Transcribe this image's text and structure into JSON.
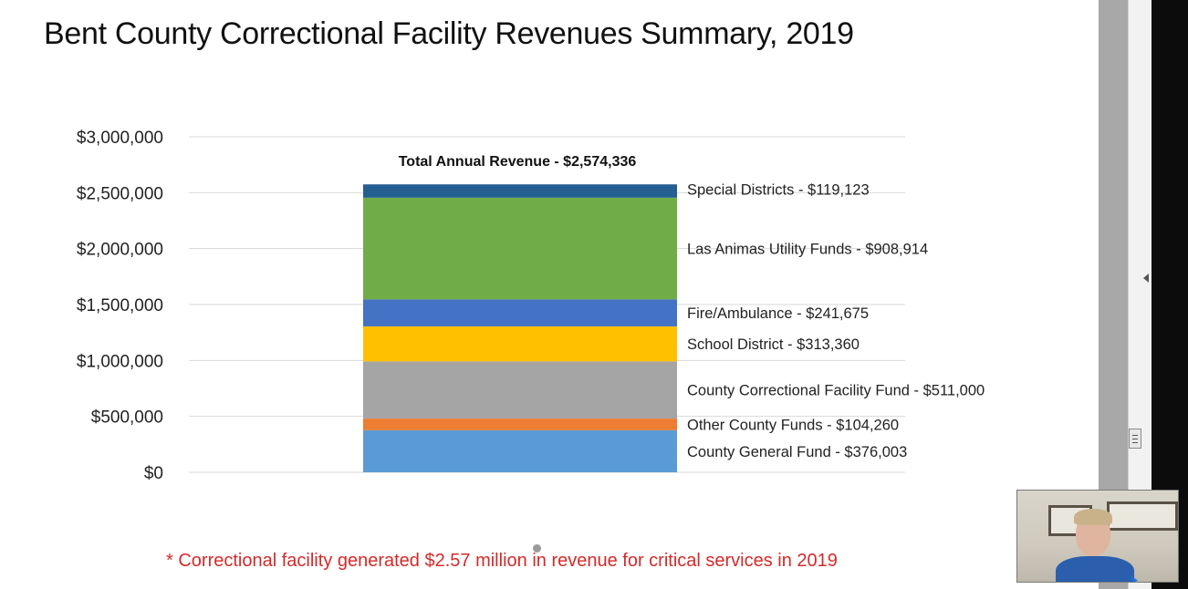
{
  "slide": {
    "title": "Bent County Correctional Facility Revenues Summary, 2019",
    "footnote": "* Correctional facility generated $2.57 million in revenue for critical services in 2019"
  },
  "chart_data": {
    "type": "bar",
    "stacked": true,
    "title": "Total Annual Revenue - $2,574,336",
    "xlabel": "",
    "ylabel": "",
    "ylim": [
      0,
      3000000
    ],
    "yticks": [
      0,
      500000,
      1000000,
      1500000,
      2000000,
      2500000,
      3000000
    ],
    "ytick_labels": [
      "$0",
      "$500,000",
      "$1,000,000",
      "$1,500,000",
      "$2,000,000",
      "$2,500,000",
      "$3,000,000"
    ],
    "grid": true,
    "categories": [
      "2019"
    ],
    "series": [
      {
        "name": "County General Fund",
        "label": "County General Fund - $376,003",
        "values": [
          376003
        ],
        "color": "#5b9bd5"
      },
      {
        "name": "Other County Funds",
        "label": "Other County Funds - $104,260",
        "values": [
          104260
        ],
        "color": "#ed7d31"
      },
      {
        "name": "County Correctional Facility Fund",
        "label": "County Correctional Facility Fund - $511,000",
        "values": [
          511000
        ],
        "color": "#a5a5a5"
      },
      {
        "name": "School District",
        "label": "School District - $313,360",
        "values": [
          313360
        ],
        "color": "#ffc000"
      },
      {
        "name": "Fire/Ambulance",
        "label": "Fire/Ambulance - $241,675",
        "values": [
          241675
        ],
        "color": "#4472c4"
      },
      {
        "name": "Las Animas Utility Funds",
        "label": "Las Animas Utility Funds - $908,914",
        "values": [
          908914
        ],
        "color": "#70ad47"
      },
      {
        "name": "Special Districts",
        "label": "Special Districts - $119,123",
        "values": [
          119123
        ],
        "color": "#255e91"
      }
    ]
  }
}
